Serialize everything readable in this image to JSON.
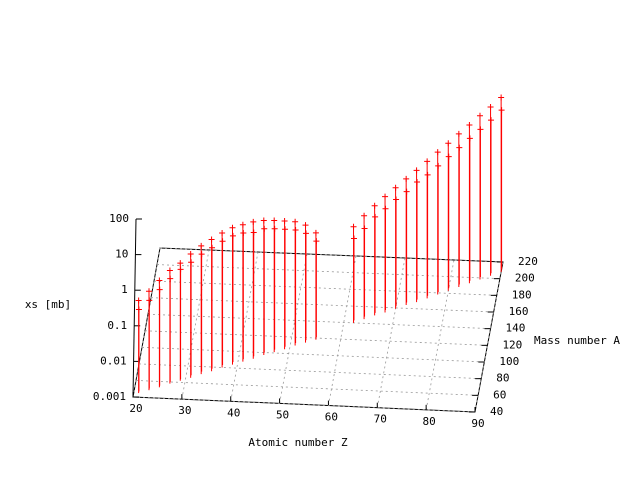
{
  "chart_data": {
    "type": "impulses3d",
    "xlabel": "Atomic number Z",
    "ylabel": "Mass number A",
    "zlabel": "xs [mb]",
    "xlim": [
      20,
      90
    ],
    "ylim": [
      40,
      220
    ],
    "zlim": [
      0.001,
      100
    ],
    "zlog": true,
    "grid": true,
    "xticks": [
      20,
      30,
      40,
      50,
      60,
      70,
      80,
      90
    ],
    "yticks": [
      40,
      60,
      80,
      100,
      120,
      140,
      160,
      180,
      200,
      220
    ],
    "zticks": [
      0.001,
      0.01,
      0.1,
      1,
      10,
      100
    ],
    "series": [
      {
        "color": "#ff0000",
        "x": [
          21,
          21,
          23,
          23,
          25,
          25,
          27,
          27,
          29,
          29,
          31,
          31,
          33,
          33,
          35,
          35,
          37,
          37,
          39,
          39,
          41,
          41,
          43,
          43,
          45,
          45,
          47,
          47,
          49,
          49,
          51,
          51,
          53,
          53,
          55,
          55,
          62,
          62,
          64,
          64,
          66,
          66,
          68,
          68,
          70,
          70,
          72,
          72,
          74,
          74,
          76,
          76,
          78,
          78,
          80,
          80,
          82,
          82,
          84,
          84,
          86,
          86,
          88,
          88,
          90,
          90
        ],
        "y": [
          45,
          47,
          49,
          51,
          53,
          55,
          58,
          60,
          62,
          64,
          66,
          69,
          71,
          74,
          75,
          78,
          80,
          83,
          84,
          87,
          88,
          91,
          92,
          95,
          97,
          100,
          101,
          104,
          105,
          108,
          110,
          113,
          114,
          117,
          118,
          121,
          140,
          143,
          145,
          148,
          150,
          153,
          154,
          157,
          159,
          162,
          164,
          167,
          168,
          171,
          173,
          176,
          178,
          181,
          183,
          186,
          188,
          191,
          193,
          196,
          198,
          201,
          203,
          206,
          208,
          211
        ],
        "z": [
          0.4,
          0.2,
          0.6,
          0.3,
          1,
          0.5,
          1.5,
          0.8,
          2,
          1.2,
          3,
          1.5,
          4,
          2,
          5,
          2.5,
          6,
          3,
          7,
          3.5,
          7,
          3.5,
          7,
          3,
          6,
          3,
          5,
          2.5,
          4,
          2,
          3,
          1.5,
          2,
          1,
          1,
          0.5,
          0.5,
          0.2,
          0.8,
          0.3,
          1.2,
          0.5,
          1.8,
          0.7,
          2.5,
          1,
          3.5,
          1.3,
          5,
          2,
          7,
          2.5,
          10,
          3.5,
          14,
          5,
          20,
          7,
          28,
          10,
          40,
          14,
          55,
          20,
          80,
          30
        ]
      }
    ]
  }
}
